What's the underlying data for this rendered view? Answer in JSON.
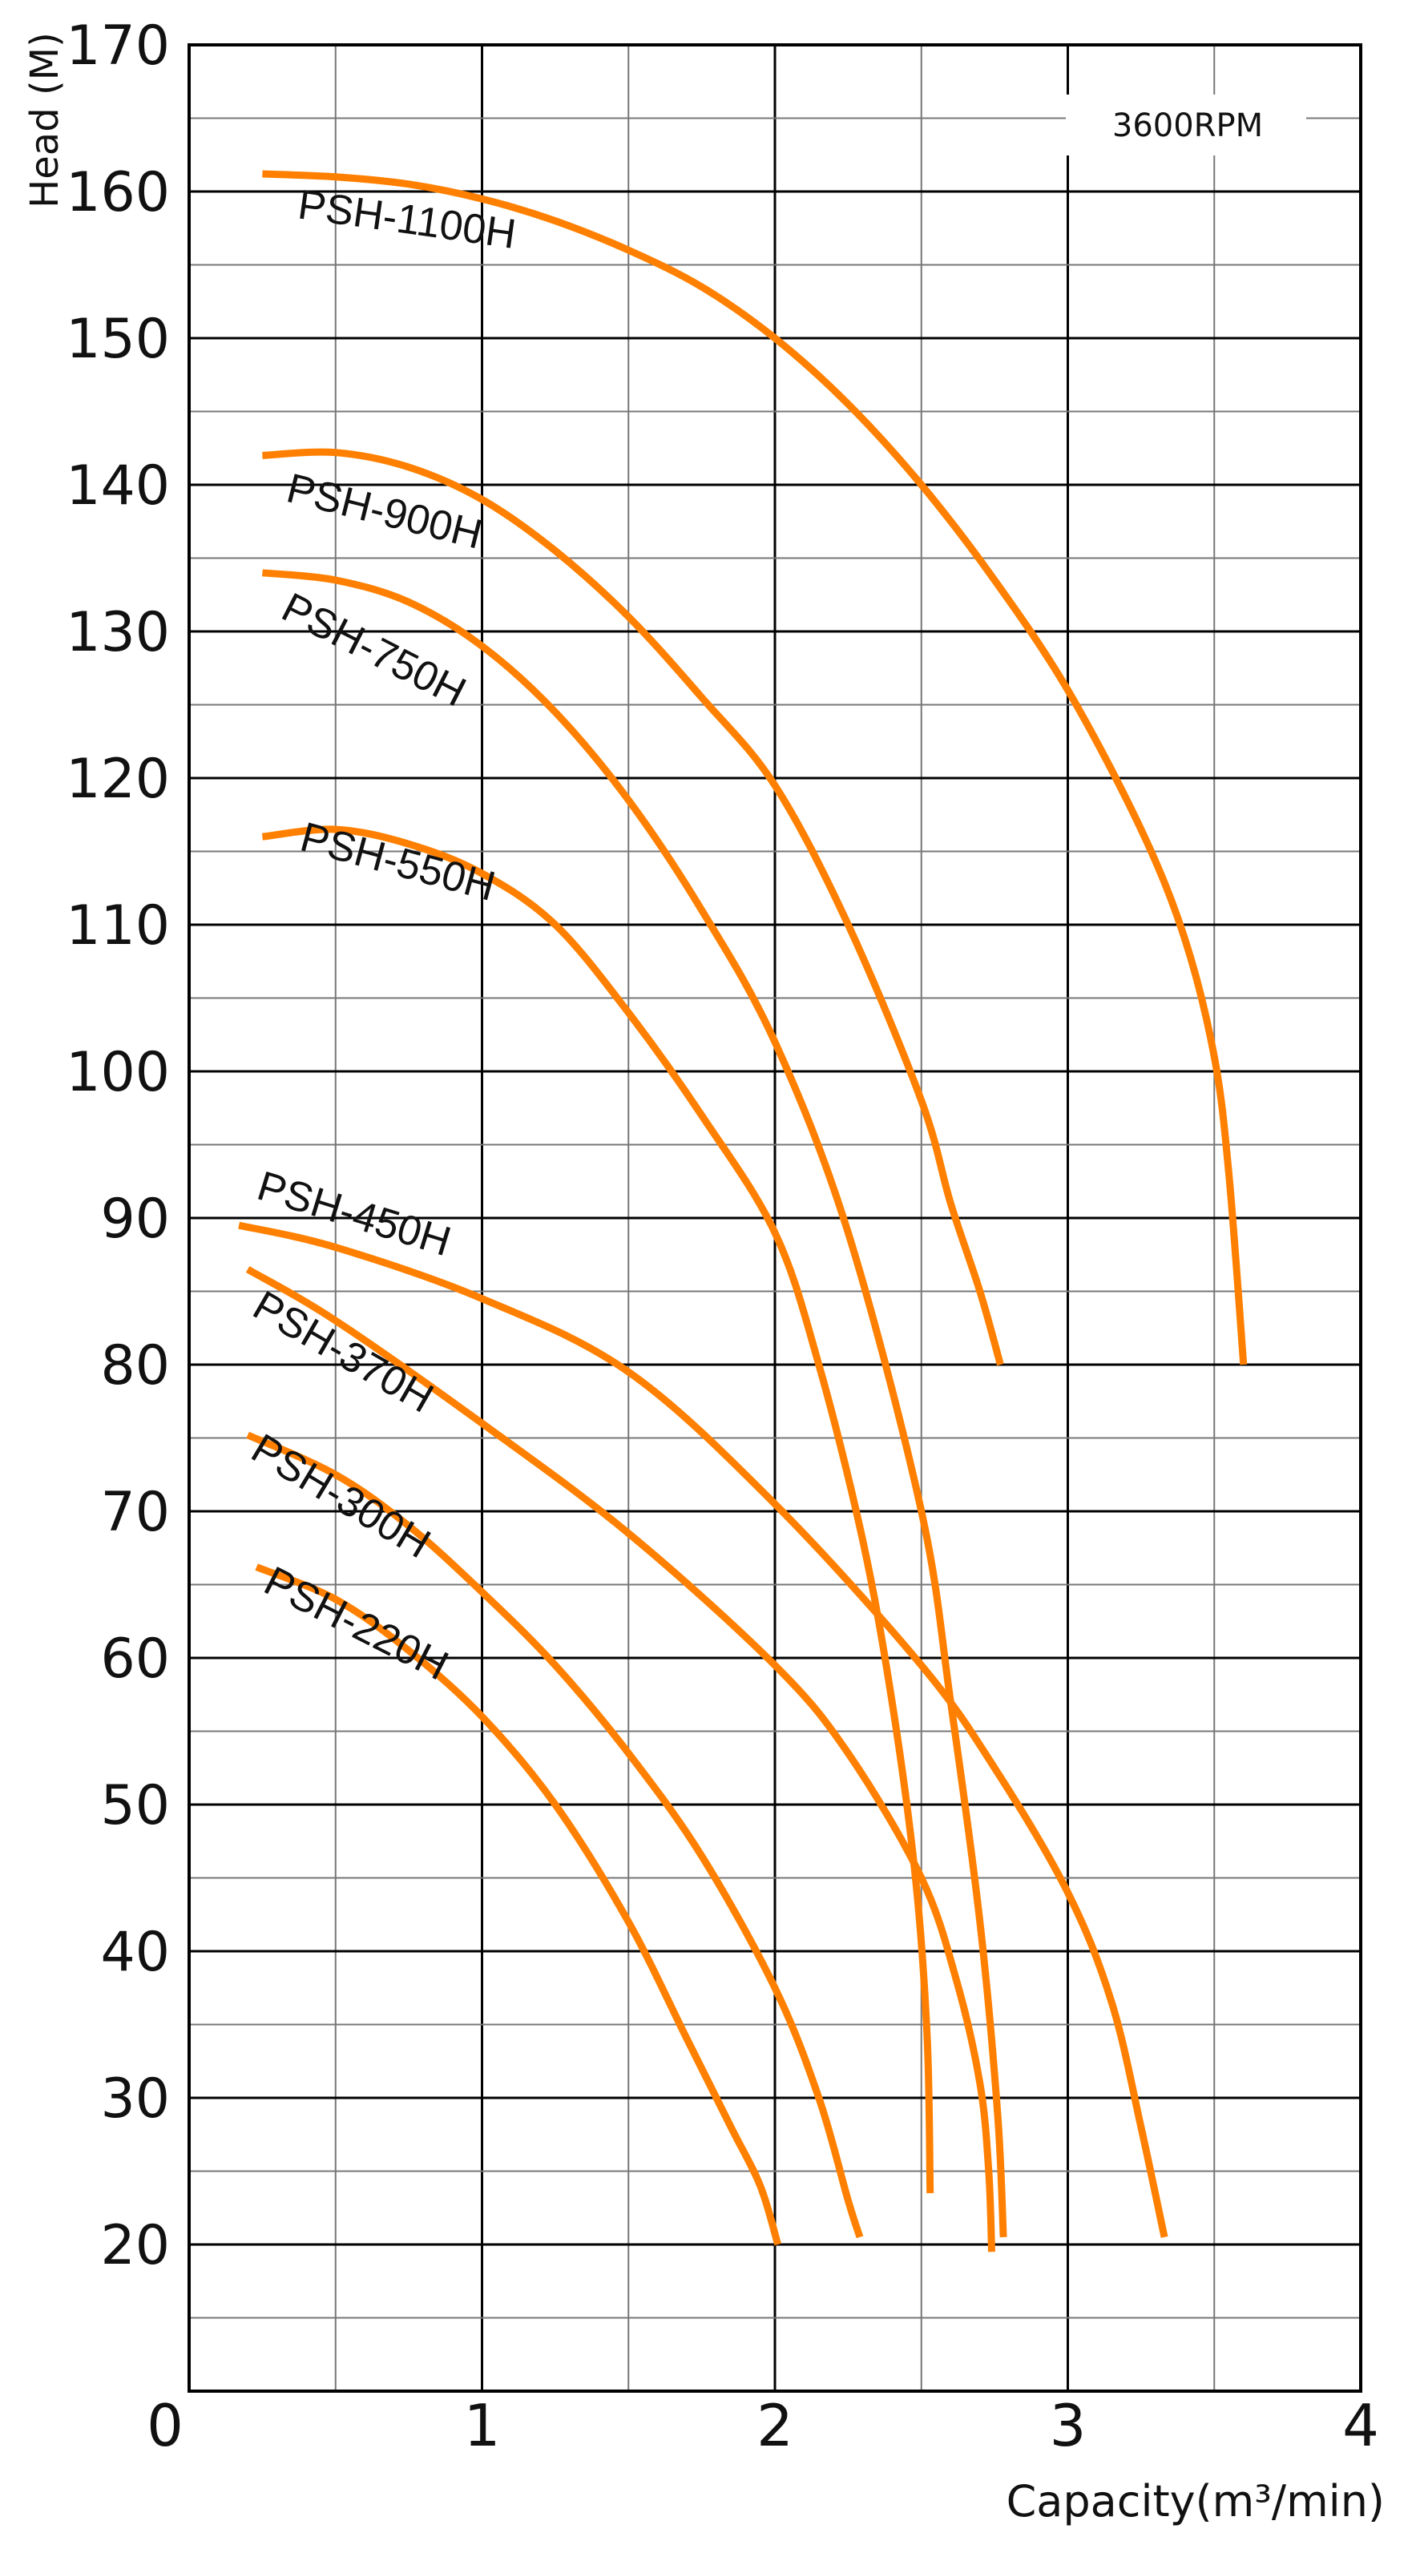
{
  "chart_data": {
    "type": "line",
    "ylabel": "Head (M)",
    "xlabel": "Capacity(m³/min)",
    "annotation": "3600RPM",
    "xlim": [
      0,
      4
    ],
    "ylim": [
      10,
      170
    ],
    "xticks": [
      "0",
      "1",
      "2",
      "3",
      "4"
    ],
    "yticks": [
      "20",
      "30",
      "40",
      "50",
      "60",
      "70",
      "80",
      "90",
      "100",
      "110",
      "120",
      "130",
      "140",
      "150",
      "160",
      "170"
    ],
    "grid": true,
    "curve_color": "#ff8000",
    "series": [
      {
        "name": "PSH-1100H",
        "points": [
          [
            0.25,
            161.2
          ],
          [
            0.5,
            161.0
          ],
          [
            0.75,
            160.5
          ],
          [
            1.0,
            159.5
          ],
          [
            1.25,
            158.0
          ],
          [
            1.5,
            156.0
          ],
          [
            1.75,
            153.5
          ],
          [
            2.0,
            150.0
          ],
          [
            2.25,
            145.5
          ],
          [
            2.5,
            140.0
          ],
          [
            2.75,
            133.5
          ],
          [
            3.0,
            126.0
          ],
          [
            3.25,
            116.5
          ],
          [
            3.4,
            109.0
          ],
          [
            3.5,
            101.0
          ],
          [
            3.55,
            93.0
          ],
          [
            3.6,
            80.0
          ]
        ]
      },
      {
        "name": "PSH-900H",
        "points": [
          [
            0.25,
            142.0
          ],
          [
            0.5,
            142.2
          ],
          [
            0.75,
            141.2
          ],
          [
            1.0,
            139.0
          ],
          [
            1.25,
            135.5
          ],
          [
            1.5,
            131.0
          ],
          [
            1.75,
            125.5
          ],
          [
            2.0,
            119.5
          ],
          [
            2.25,
            110.0
          ],
          [
            2.5,
            98.0
          ],
          [
            2.6,
            91.0
          ],
          [
            2.7,
            85.0
          ],
          [
            2.77,
            80.0
          ]
        ]
      },
      {
        "name": "PSH-750H",
        "points": [
          [
            0.25,
            134.0
          ],
          [
            0.5,
            133.5
          ],
          [
            0.75,
            132.0
          ],
          [
            1.0,
            129.0
          ],
          [
            1.25,
            124.5
          ],
          [
            1.5,
            118.5
          ],
          [
            1.75,
            111.0
          ],
          [
            2.0,
            102.0
          ],
          [
            2.25,
            89.0
          ],
          [
            2.5,
            70.0
          ],
          [
            2.6,
            57.0
          ],
          [
            2.7,
            42.0
          ],
          [
            2.76,
            29.0
          ],
          [
            2.78,
            20.5
          ]
        ]
      },
      {
        "name": "PSH-550H",
        "points": [
          [
            0.25,
            116.0
          ],
          [
            0.5,
            116.5
          ],
          [
            0.75,
            115.5
          ],
          [
            1.0,
            113.5
          ],
          [
            1.25,
            110.0
          ],
          [
            1.5,
            104.0
          ],
          [
            1.75,
            97.0
          ],
          [
            2.0,
            89.0
          ],
          [
            2.15,
            80.0
          ],
          [
            2.3,
            68.0
          ],
          [
            2.4,
            57.0
          ],
          [
            2.48,
            45.0
          ],
          [
            2.52,
            34.0
          ],
          [
            2.53,
            23.5
          ]
        ]
      },
      {
        "name": "PSH-450H",
        "points": [
          [
            0.17,
            89.5
          ],
          [
            0.5,
            88.0
          ],
          [
            1.0,
            84.5
          ],
          [
            1.5,
            79.5
          ],
          [
            2.0,
            70.5
          ],
          [
            2.5,
            59.5
          ],
          [
            2.75,
            52.5
          ],
          [
            3.0,
            44.0
          ],
          [
            3.15,
            36.5
          ],
          [
            3.25,
            28.0
          ],
          [
            3.33,
            20.5
          ]
        ]
      },
      {
        "name": "PSH-370H",
        "points": [
          [
            0.2,
            86.5
          ],
          [
            0.5,
            83.0
          ],
          [
            1.0,
            76.0
          ],
          [
            1.5,
            68.5
          ],
          [
            2.0,
            59.5
          ],
          [
            2.25,
            53.5
          ],
          [
            2.5,
            45.0
          ],
          [
            2.62,
            38.0
          ],
          [
            2.7,
            31.0
          ],
          [
            2.73,
            25.0
          ],
          [
            2.74,
            19.5
          ]
        ]
      },
      {
        "name": "PSH-300H",
        "points": [
          [
            0.2,
            75.2
          ],
          [
            0.5,
            72.5
          ],
          [
            0.75,
            69.0
          ],
          [
            1.0,
            64.5
          ],
          [
            1.25,
            59.5
          ],
          [
            1.5,
            53.5
          ],
          [
            1.75,
            46.5
          ],
          [
            2.0,
            37.5
          ],
          [
            2.15,
            30.0
          ],
          [
            2.25,
            23.0
          ],
          [
            2.29,
            20.5
          ]
        ]
      },
      {
        "name": "PSH-220H",
        "points": [
          [
            0.23,
            66.2
          ],
          [
            0.5,
            64.0
          ],
          [
            0.75,
            60.5
          ],
          [
            1.0,
            56.0
          ],
          [
            1.25,
            50.0
          ],
          [
            1.5,
            42.0
          ],
          [
            1.7,
            34.0
          ],
          [
            1.85,
            28.0
          ],
          [
            1.95,
            24.0
          ],
          [
            2.01,
            20.0
          ]
        ]
      }
    ]
  }
}
